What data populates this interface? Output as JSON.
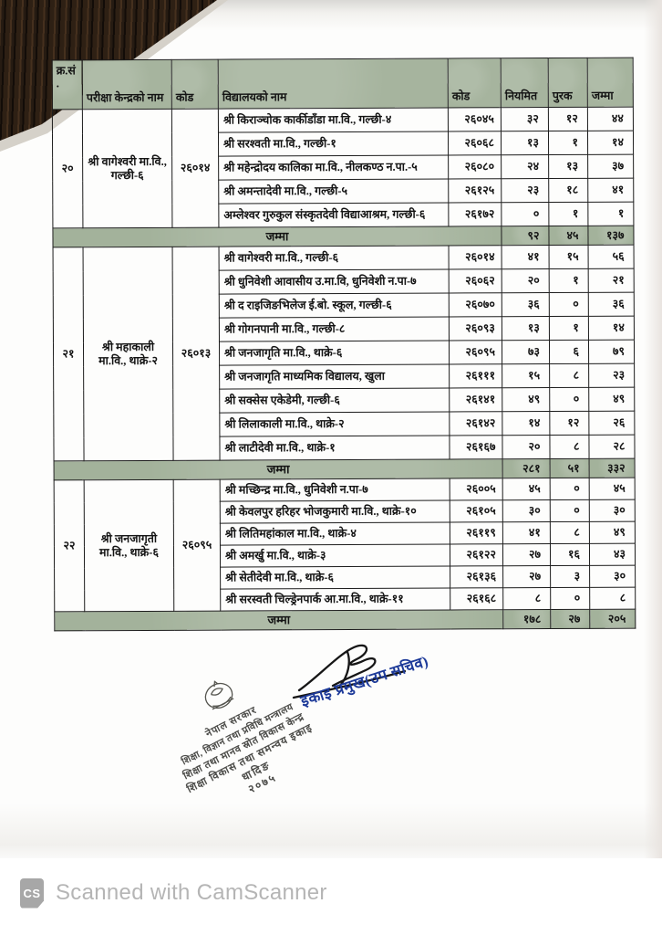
{
  "document": {
    "table": {
      "headers": [
        "क्र.सं.",
        "परीक्षा केन्द्रको नाम",
        "कोड",
        "विद्यालयको नाम",
        "कोड",
        "नियमित",
        "पुरक",
        "जम्मा"
      ],
      "groups": [
        {
          "sn": "२०",
          "center_name": "श्री वागेश्वरी मा.वि., गल्छी-६",
          "center_code": "२६०१४",
          "schools": [
            {
              "name": "श्री किराञ्चोक कार्कीडाँडा मा.वि., गल्छी-४",
              "code": "२६०४५",
              "regular": "३२",
              "supplementary": "१२",
              "total": "४४"
            },
            {
              "name": "श्री सरश्वती मा.वि., गल्छी-१",
              "code": "२६०६८",
              "regular": "१३",
              "supplementary": "१",
              "total": "१४"
            },
            {
              "name": "श्री महेन्द्रोदय कालिका मा.वि., नीलकण्ठ न.पा.-५",
              "code": "२६०८०",
              "regular": "२४",
              "supplementary": "१३",
              "total": "३७"
            },
            {
              "name": "श्री अमन्तादेवी मा.वि., गल्छी-५",
              "code": "२६१२५",
              "regular": "२३",
              "supplementary": "१८",
              "total": "४१"
            },
            {
              "name": "अम्लेश्वर गुरुकुल संस्कृतदेवी विद्याआश्रम, गल्छी-६",
              "code": "२६१७२",
              "regular": "०",
              "supplementary": "१",
              "total": "१"
            }
          ],
          "total_label": "जम्मा",
          "totals": {
            "regular": "९२",
            "supplementary": "४५",
            "total": "१३७"
          }
        },
        {
          "sn": "२१",
          "center_name": "श्री महाकाली मा.वि., थाक्रे-२",
          "center_code": "२६०१३",
          "schools": [
            {
              "name": "श्री वागेश्वरी मा.वि., गल्छी-६",
              "code": "२६०१४",
              "regular": "४१",
              "supplementary": "१५",
              "total": "५६"
            },
            {
              "name": "श्री धुनिवेशी आवासीय उ.मा.वि, धुनिवेशी न.पा-७",
              "code": "२६०६२",
              "regular": "२०",
              "supplementary": "१",
              "total": "२१"
            },
            {
              "name": "श्री द राइजिङभिलेज ई.बो. स्कूल, गल्छी-६",
              "code": "२६०७०",
              "regular": "३६",
              "supplementary": "०",
              "total": "३६"
            },
            {
              "name": "श्री गोगनपानी मा.वि., गल्छी-८",
              "code": "२६०९३",
              "regular": "१३",
              "supplementary": "१",
              "total": "१४"
            },
            {
              "name": "श्री जनजागृति मा.वि., थाक्रे-६",
              "code": "२६०९५",
              "regular": "७३",
              "supplementary": "६",
              "total": "७९"
            },
            {
              "name": "श्री जनजागृति माध्यमिक विद्यालय, खुला",
              "code": "२६१११",
              "regular": "१५",
              "supplementary": "८",
              "total": "२३"
            },
            {
              "name": "श्री सक्सेस एकेडेमी, गल्छी-६",
              "code": "२६१४१",
              "regular": "४९",
              "supplementary": "०",
              "total": "४९"
            },
            {
              "name": "श्री लिलाकाली मा.वि., थाक्रे-२",
              "code": "२६१४२",
              "regular": "१४",
              "supplementary": "१२",
              "total": "२६"
            },
            {
              "name": "श्री लाटीदेवी मा.वि., थाक्रे-१",
              "code": "२६१६७",
              "regular": "२०",
              "supplementary": "८",
              "total": "२८"
            }
          ],
          "total_label": "जम्मा",
          "totals": {
            "regular": "२८१",
            "supplementary": "५१",
            "total": "३३२"
          }
        },
        {
          "sn": "२२",
          "center_name": "श्री जनजागृती मा.वि., थाक्रे-६",
          "center_code": "२६०९५",
          "schools": [
            {
              "name": "श्री मच्छिन्द्र मा.वि., धुनिवेशी न.पा-७",
              "code": "२६००५",
              "regular": "४५",
              "supplementary": "०",
              "total": "४५"
            },
            {
              "name": "श्री केवलपुर हरिहर भोजकुमारी मा.वि., थाक्रे-१०",
              "code": "२६१०५",
              "regular": "३०",
              "supplementary": "०",
              "total": "३०"
            },
            {
              "name": "श्री लितिमहांकाल मा.वि., थाक्रे-४",
              "code": "२६११९",
              "regular": "४१",
              "supplementary": "८",
              "total": "४९"
            },
            {
              "name": "श्री अमर्खु मा.वि., थाक्रे-३",
              "code": "२६१२२",
              "regular": "२७",
              "supplementary": "१६",
              "total": "४३"
            },
            {
              "name": "श्री सेतीदेवी मा.वि., थाक्रे-६",
              "code": "२६१३६",
              "regular": "२७",
              "supplementary": "३",
              "total": "३०"
            },
            {
              "name": "श्री सरस्वती चिल्ड्रेनपार्क आ.मा.वि., थाक्रे-११",
              "code": "२६१६८",
              "regular": "८",
              "supplementary": "०",
              "total": "८"
            }
          ],
          "total_label": "जम्मा",
          "totals": {
            "regular": "१७८",
            "supplementary": "२७",
            "total": "२०५"
          }
        }
      ]
    },
    "stamp": {
      "lines": [
        "नेपाल सरकार",
        "शिक्षा, विज्ञान तथा प्रविधि मन्त्रालय",
        "शिक्षा तथा मानव स्रोत विकास केन्द्र",
        "शिक्षा विकास तथा समन्वय इकाइ",
        "धादिङ",
        "२०७५"
      ]
    },
    "signature_title": "इकाइ प्रमुख(उप सचिव)"
  },
  "page": {
    "footer": {
      "logo_text": "CS",
      "scan_text": "Scanned with CamScanner"
    }
  },
  "colors": {
    "header_green": "#a6b49e",
    "signature_blue": "#1d3a99",
    "stamp_ink": "#4c4c49",
    "wood_corner": "#261b12"
  }
}
